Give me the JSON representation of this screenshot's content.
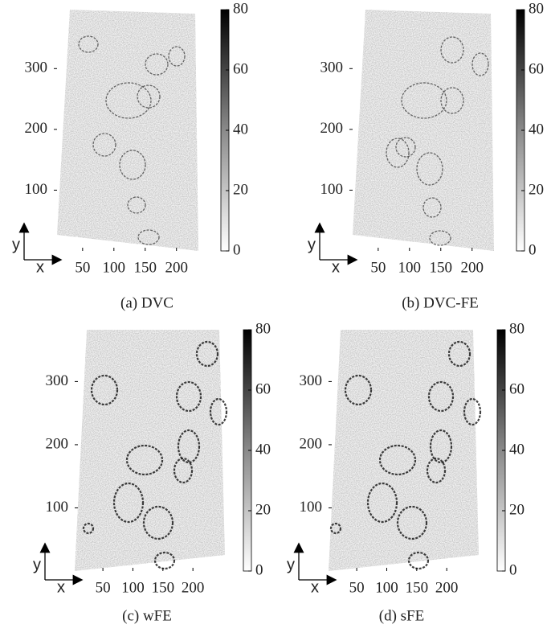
{
  "chart_data": [
    {
      "type": "heatmap",
      "caption": "(a) DVC",
      "x_label": "x",
      "y_label": "y",
      "xlim": [
        4,
        235
      ],
      "xticks": [
        50,
        100,
        150,
        200
      ],
      "ylim": [
        0,
        397
      ],
      "yticks": [
        100,
        200,
        300
      ],
      "clim": [
        0,
        80
      ],
      "cticks": [
        0,
        20,
        40,
        60,
        80
      ]
    },
    {
      "type": "heatmap",
      "caption": "(b) DVC-FE",
      "x_label": "x",
      "y_label": "y",
      "xlim": [
        4,
        235
      ],
      "xticks": [
        50,
        100,
        150,
        200
      ],
      "ylim": [
        0,
        397
      ],
      "yticks": [
        100,
        200,
        300
      ],
      "clim": [
        0,
        80
      ],
      "cticks": [
        0,
        20,
        40,
        60,
        80
      ]
    },
    {
      "type": "heatmap",
      "caption": "(c) wFE",
      "x_label": "x",
      "y_label": "y",
      "xlim": [
        3,
        260
      ],
      "xticks": [
        50,
        100,
        150,
        200
      ],
      "ylim": [
        0,
        382
      ],
      "yticks": [
        100,
        200,
        300
      ],
      "clim": [
        0,
        80
      ],
      "cticks": [
        0,
        20,
        40,
        60,
        80
      ]
    },
    {
      "type": "heatmap",
      "caption": "(d) sFE",
      "x_label": "x",
      "y_label": "y",
      "xlim": [
        3,
        260
      ],
      "xticks": [
        50,
        100,
        150,
        200
      ],
      "ylim": [
        0,
        382
      ],
      "yticks": [
        100,
        200,
        300
      ],
      "clim": [
        0,
        80
      ],
      "cticks": [
        0,
        20,
        40,
        60,
        80
      ]
    }
  ]
}
